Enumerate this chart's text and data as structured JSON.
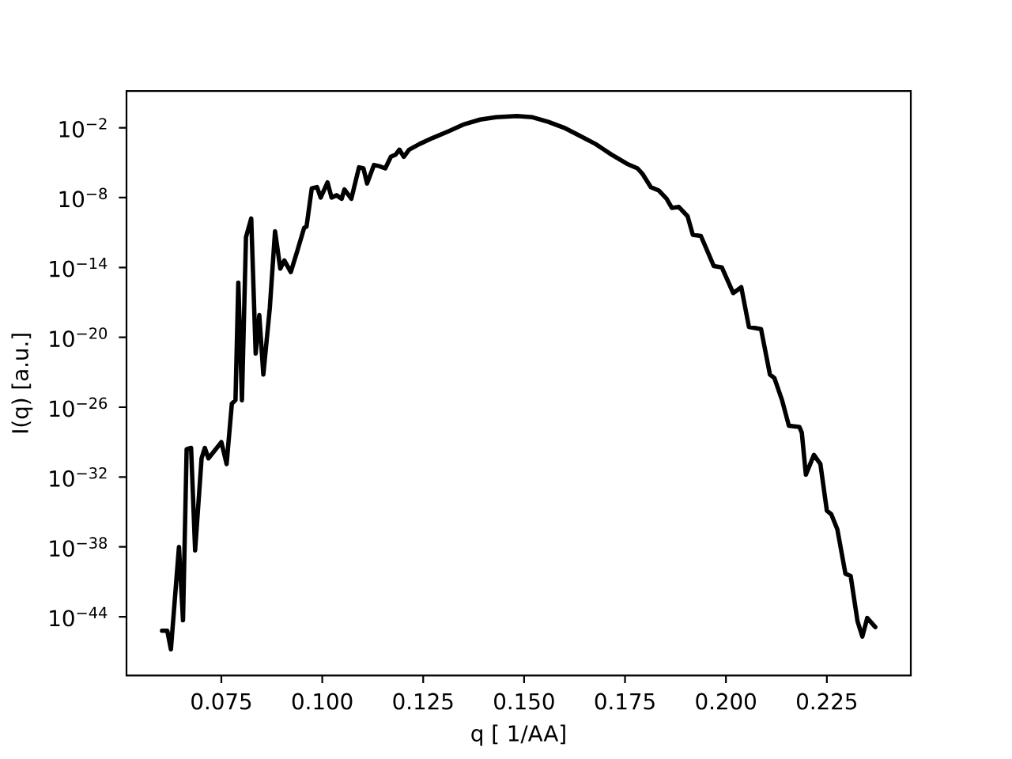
{
  "chart_data": {
    "type": "line",
    "xlabel": "q [ 1/AA]",
    "ylabel": "I(q) [a.u.]",
    "log": "y",
    "color": "#000000",
    "xlim": [
      0.0515,
      0.2458
    ],
    "ylim": [
      9e-50,
      14
    ],
    "xticks": [
      0.075,
      {
        "value": 0.1,
        "label": "0.100"
      },
      0.125,
      {
        "value": 0.15,
        "label": "0.150"
      },
      0.175,
      {
        "value": 0.2,
        "label": "0.200"
      },
      0.225
    ],
    "yticks": [
      {
        "value": 1e-44,
        "label": "10$^{−44}$"
      },
      {
        "value": 1e-38,
        "label": "10$^{−38}$"
      },
      {
        "value": 1e-32,
        "label": "10$^{−32}$"
      },
      {
        "value": 1e-26,
        "label": "10$^{−26}$"
      },
      {
        "value": 1e-20,
        "label": "10$^{−20}$"
      },
      {
        "value": 1e-14,
        "label": "10$^{−14}$"
      },
      {
        "value": 1e-08,
        "label": "10$^{−8}$"
      },
      {
        "value": 0.01,
        "label": "10$^{−2}$"
      }
    ],
    "x": [
      0.0603,
      0.0616,
      0.0625,
      0.0645,
      0.0655,
      0.0664,
      0.0675,
      0.0685,
      0.0701,
      0.0709,
      0.0718,
      0.075,
      0.0763,
      0.0776,
      0.0785,
      0.0792,
      0.0801,
      0.0811,
      0.0824,
      0.0835,
      0.0844,
      0.0854,
      0.087,
      0.0883,
      0.0896,
      0.0906,
      0.0922,
      0.0938,
      0.0955,
      0.0961,
      0.0974,
      0.0987,
      0.0996,
      0.1013,
      0.1023,
      0.1035,
      0.1048,
      0.1055,
      0.1072,
      0.1091,
      0.1102,
      0.1111,
      0.1128,
      0.1141,
      0.1156,
      0.117,
      0.1182,
      0.1191,
      0.1202,
      0.1215,
      0.1241,
      0.1273,
      0.1313,
      0.1352,
      0.1391,
      0.143,
      0.1482,
      0.1521,
      0.156,
      0.1599,
      0.1638,
      0.1677,
      0.1716,
      0.1755,
      0.1781,
      0.1794,
      0.1814,
      0.1834,
      0.1853,
      0.1866,
      0.1883,
      0.1905,
      0.1918,
      0.1938,
      0.197,
      0.199,
      0.2018,
      0.2038,
      0.2057,
      0.2087,
      0.2109,
      0.212,
      0.2139,
      0.2156,
      0.2182,
      0.2188,
      0.2198,
      0.2218,
      0.2234,
      0.225,
      0.2261,
      0.2276,
      0.2296,
      0.2309,
      0.2326,
      0.2338,
      0.235,
      0.237
    ],
    "values": [
      6.3e-46,
      6.3e-46,
      1.6e-47,
      1e-38,
      5e-45,
      2.5e-30,
      3.2e-30,
      5e-39,
      4e-31,
      3.2e-30,
      4e-31,
      1e-29,
      1.3e-31,
      2e-26,
      4e-26,
      5e-16,
      4e-26,
      4e-12,
      1.6e-10,
      4e-22,
      8e-19,
      6.3e-24,
      3.2e-18,
      1.3e-11,
      7.9e-15,
      4e-14,
      4e-15,
      2.5e-13,
      2.5e-11,
      3.2e-11,
      6.3e-08,
      7.9e-08,
      1e-08,
      2e-07,
      1e-08,
      1.6e-08,
      7.9e-09,
      5e-08,
      7.9e-09,
      4e-06,
      3.2e-06,
      1.6e-07,
      6.3e-06,
      5e-06,
      3.2e-06,
      3.2e-05,
      5e-05,
      0.00013,
      3.2e-05,
      0.00013,
      0.0004,
      0.0013,
      0.005,
      0.02,
      0.05,
      0.079,
      0.1,
      0.079,
      0.032,
      0.01,
      0.002,
      0.0004,
      5e-05,
      7.9e-06,
      3.2e-06,
      1e-06,
      7.9e-08,
      4e-08,
      7.9e-09,
      1.3e-09,
      1.6e-09,
      2.5e-10,
      6.3e-12,
      5e-12,
      1.3e-14,
      1e-14,
      6.3e-17,
      2e-16,
      7.9e-20,
      5e-20,
      6.3e-24,
      3.2e-24,
      4e-26,
      2.5e-28,
      2e-28,
      6.3e-29,
      1.6e-32,
      7.9e-31,
      1.3e-31,
      1.3e-35,
      6.3e-36,
      3.2e-37,
      5e-41,
      3.2e-41,
      4e-45,
      2e-46,
      7.9e-45,
      1.3e-45
    ]
  }
}
